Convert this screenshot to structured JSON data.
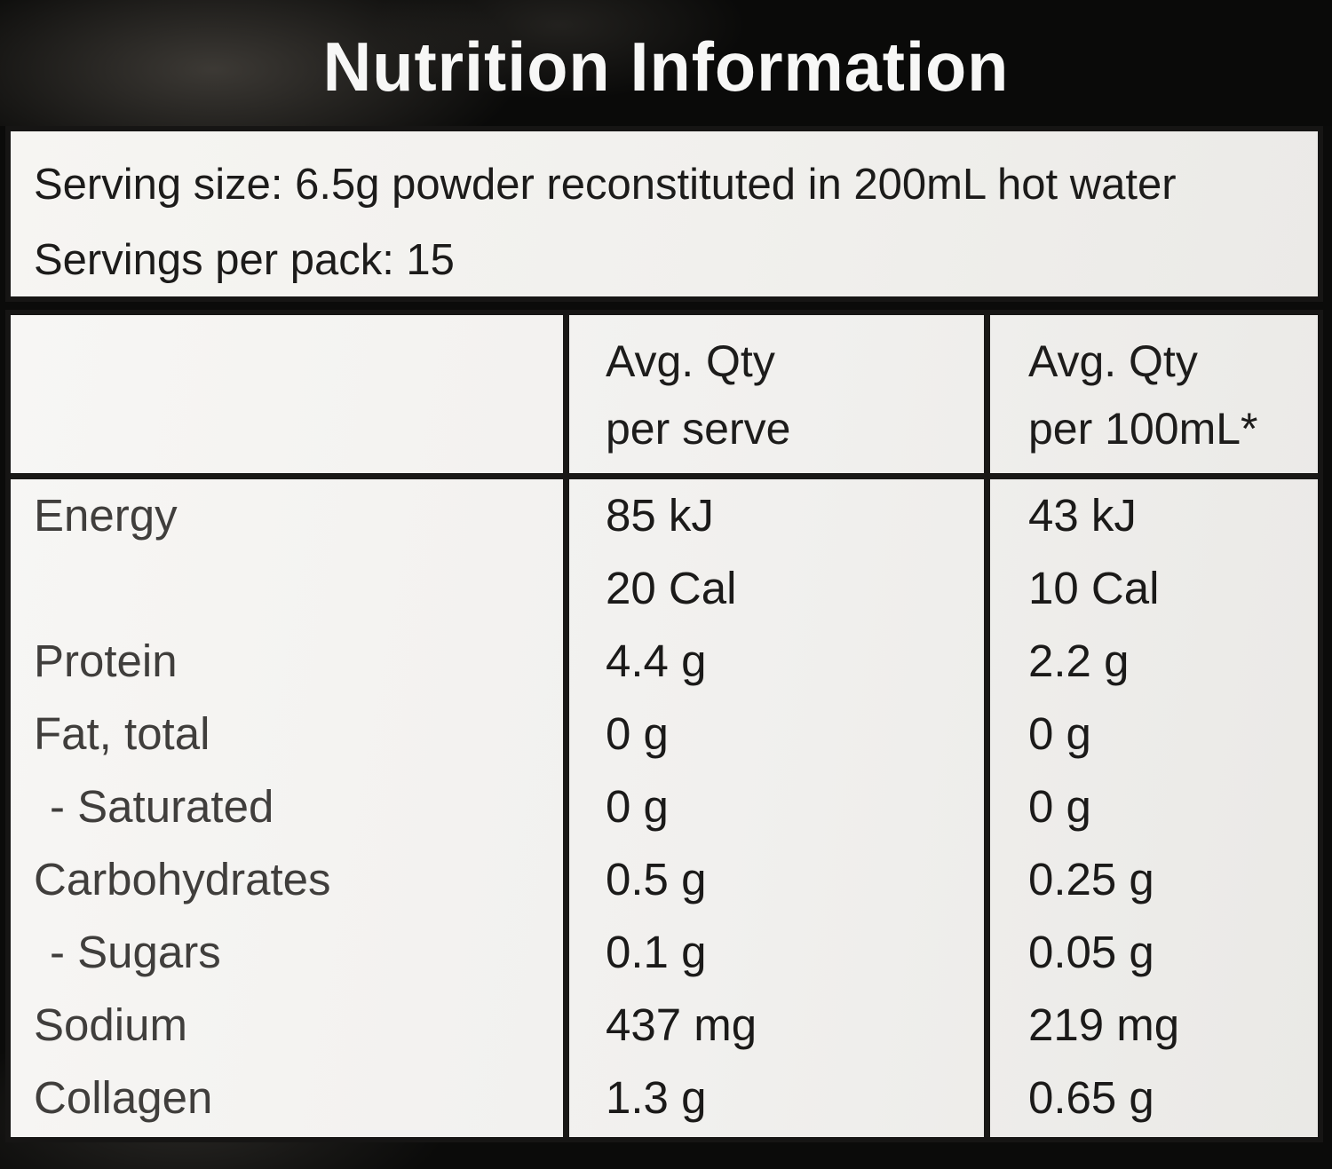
{
  "title": "Nutrition Information",
  "serving_info": {
    "serving_size": "Serving size: 6.5g powder reconstituted in 200mL hot water",
    "servings_per_pack": "Servings per pack: 15"
  },
  "table": {
    "header": {
      "per_serve_line1": "Avg. Qty",
      "per_serve_line2": "per serve",
      "per_100ml_line1": "Avg. Qty",
      "per_100ml_line2": "per 100mL*"
    },
    "rows": [
      {
        "label": "Energy",
        "per_serve": "85 kJ",
        "per_100ml": "43 kJ",
        "indent": false
      },
      {
        "label": "",
        "per_serve": "20 Cal",
        "per_100ml": "10 Cal",
        "indent": false
      },
      {
        "label": "Protein",
        "per_serve": "4.4 g",
        "per_100ml": "2.2 g",
        "indent": false
      },
      {
        "label": "Fat, total",
        "per_serve": "0 g",
        "per_100ml": "0 g",
        "indent": false
      },
      {
        "label": "- Saturated",
        "per_serve": "0 g",
        "per_100ml": "0 g",
        "indent": true
      },
      {
        "label": "Carbohydrates",
        "per_serve": "0.5 g",
        "per_100ml": "0.25 g",
        "indent": false
      },
      {
        "label": "- Sugars",
        "per_serve": "0.1 g",
        "per_100ml": "0.05 g",
        "indent": true
      },
      {
        "label": "Sodium",
        "per_serve": "437 mg",
        "per_100ml": "219 mg",
        "indent": false
      },
      {
        "label": "Collagen",
        "per_serve": "1.3 g",
        "per_100ml": "0.65 g",
        "indent": false
      }
    ]
  },
  "colors": {
    "label_background": "#f2f1ee",
    "band_black": "#0a0a09",
    "border_black": "#161514",
    "title_text": "#f7f7f6",
    "value_text": "#1b1a19",
    "nutrient_label_text": "#403e3c"
  }
}
